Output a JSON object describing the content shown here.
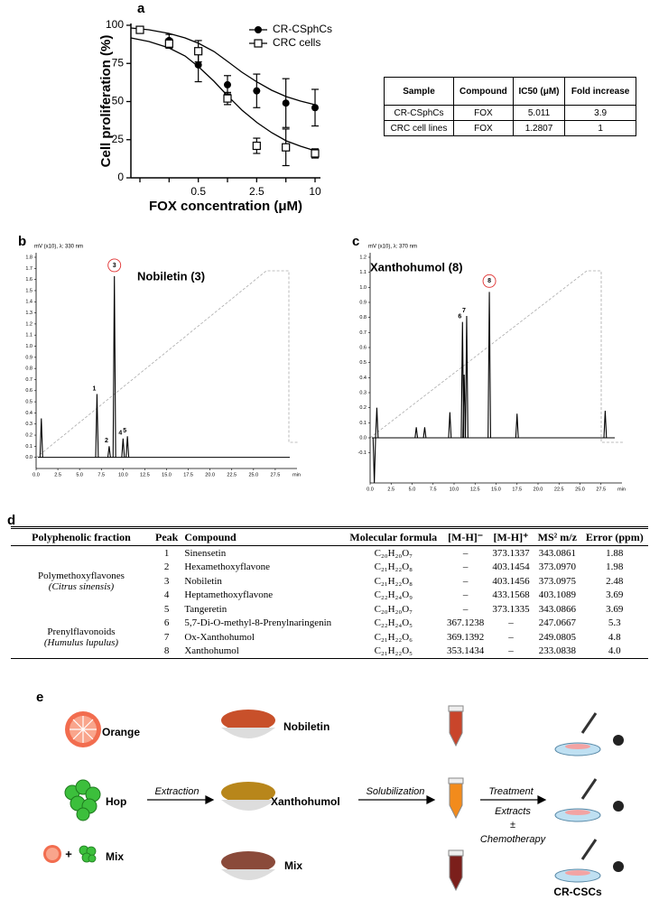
{
  "panel_labels": [
    "a",
    "b",
    "c",
    "d",
    "e"
  ],
  "chart_data": [
    {
      "type": "scatter",
      "xlabel": "FOX concentration (μM)",
      "ylabel": "Cell proliferation (%)",
      "categories": [
        null,
        null,
        "0.5",
        null,
        "2.5",
        null,
        "10"
      ],
      "series": [
        {
          "name": "CR-CSphCs",
          "color": "#000000",
          "marker": "circle",
          "values": [
            97,
            90,
            74,
            61,
            57,
            49,
            46
          ],
          "errors": [
            0,
            4,
            11,
            6,
            11,
            16,
            12
          ]
        },
        {
          "name": "CRC cells",
          "color": "#000000",
          "marker": "square",
          "values": [
            97,
            88,
            83,
            52,
            21,
            20,
            16
          ],
          "errors": [
            0,
            3,
            7,
            4,
            5,
            12,
            3
          ]
        }
      ],
      "ylim": [
        0,
        100
      ],
      "yticks": [
        0,
        25,
        50,
        75,
        100
      ]
    },
    {
      "type": "chromatogram",
      "title": "Nobiletin (3)",
      "ylabel": "mV (x10), λ: 330 nm",
      "xlabel": "min",
      "x": [
        0.6,
        7.0,
        8.4,
        9.0,
        10.0,
        10.5
      ],
      "values": [
        0.35,
        0.57,
        0.1,
        1.63,
        0.17,
        0.19
      ],
      "peak_labels": [
        null,
        "1",
        "2",
        "3",
        "4",
        "5"
      ],
      "circled": 3,
      "xlim": [
        0,
        30
      ],
      "ylim": [
        -0.1,
        1.8
      ],
      "xticks": [
        {
          "value": 0,
          "label": "0.0"
        },
        2.5,
        {
          "value": 5,
          "label": "5.0"
        },
        7.5,
        {
          "value": 10,
          "label": "10.0"
        },
        12.5,
        {
          "value": 15,
          "label": "15.0"
        },
        17.5,
        {
          "value": 20,
          "label": "20.0"
        },
        22.5,
        {
          "value": 25,
          "label": "25.0"
        },
        27.5
      ],
      "yticks": [
        {
          "value": 0,
          "label": "0.0"
        },
        0.1,
        0.2,
        0.3,
        0.4,
        0.5,
        0.6,
        0.7,
        0.8,
        0.9,
        {
          "value": 1,
          "label": "1.0"
        },
        1.1,
        1.2,
        1.3,
        1.4,
        1.5,
        1.6,
        1.7,
        1.8
      ]
    },
    {
      "type": "chromatogram",
      "title": "Xanthohumol (8)",
      "ylabel": "mV (x10), λ: 370 nm",
      "xlabel": "min",
      "x": [
        0.5,
        0.8,
        5.5,
        6.5,
        9.5,
        11.0,
        11.2,
        11.5,
        14.2,
        17.5,
        28.0
      ],
      "values": [
        -0.3,
        0.2,
        0.07,
        0.07,
        0.17,
        0.77,
        0.42,
        0.81,
        0.97,
        0.16,
        0.18
      ],
      "peak_labels": [
        null,
        null,
        null,
        null,
        null,
        "6",
        null,
        "7",
        "8",
        null,
        null
      ],
      "circled": 8,
      "xlim": [
        0,
        30
      ],
      "ylim": [
        -0.3,
        1.2
      ],
      "xticks": [
        {
          "value": 0,
          "label": "0.0"
        },
        2.5,
        {
          "value": 5,
          "label": "5.0"
        },
        7.5,
        {
          "value": 10,
          "label": "10.0"
        },
        12.5,
        {
          "value": 15,
          "label": "15.0"
        },
        17.5,
        {
          "value": 20,
          "label": "20.0"
        },
        22.5,
        {
          "value": 25,
          "label": "25.0"
        },
        27.5
      ],
      "yticks": [
        -0.1,
        {
          "value": 0,
          "label": "0.0"
        },
        0.1,
        0.2,
        0.3,
        0.4,
        0.5,
        0.6,
        0.7,
        0.8,
        0.9,
        {
          "value": 1,
          "label": "1.0"
        },
        1.1,
        1.2
      ]
    }
  ],
  "table_a": {
    "header": [
      "Sample",
      "Compound",
      "IC50 (μM)",
      "Fold increase"
    ],
    "rows": [
      [
        "CR-CSphCs",
        "FOX",
        "5.011",
        "3.9"
      ],
      [
        "CRC cell lines",
        "FOX",
        "1.2807",
        "1"
      ]
    ]
  },
  "table_d": {
    "header": [
      "Polyphenolic fraction",
      "Peak",
      "Compound",
      "Molecular formula",
      "[M-H]⁻",
      "[M-H]⁺",
      "MS² m/z",
      "Error (ppm)"
    ],
    "groups": [
      {
        "name": "Polymethoxyflavones",
        "species": "(Citrus sinensis)",
        "rows": 5
      },
      {
        "name": "Prenylflavonoids",
        "species": "(Humulus lupulus)",
        "rows": 3
      }
    ],
    "rows": [
      [
        "1",
        "Sinensetin",
        "C₂₀H₂₀O₇",
        "–",
        "373.1337",
        "343.0861",
        "1.88"
      ],
      [
        "2",
        "Hexamethoxyflavone",
        "C₂₁H₂₂O₈",
        "–",
        "403.1454",
        "373.0970",
        "1.98"
      ],
      [
        "3",
        "Nobiletin",
        "C₂₁H₂₂O₈",
        "–",
        "403.1456",
        "373.0975",
        "2.48"
      ],
      [
        "4",
        "Heptamethoxyflavone",
        "C₂₂H₂₄O₉",
        "–",
        "433.1568",
        "403.1089",
        "3.69"
      ],
      [
        "5",
        "Tangeretin",
        "C₂₀H₂₀O₇",
        "–",
        "373.1335",
        "343.0866",
        "3.69"
      ],
      [
        "6",
        "5,7-Di-O-methyl-8-Prenylnaringenin",
        "C₂₂H₂₄O₅",
        "367.1238",
        "–",
        "247.0667",
        "5.3"
      ],
      [
        "7",
        "Ox-Xanthohumol",
        "C₂₁H₂₂O₆",
        "369.1392",
        "–",
        "249.0805",
        "4.8"
      ],
      [
        "8",
        "Xanthohumol",
        "C₂₁H₂₂O₅",
        "353.1434",
        "–",
        "233.0838",
        "4.0"
      ]
    ]
  },
  "workflow": {
    "sources": [
      "Orange",
      "Hop",
      "Mix"
    ],
    "plus": "+",
    "steps": [
      "Extraction",
      "Solubilization",
      "Treatment"
    ],
    "extracts": [
      "Nobiletin",
      "Xanthohumol",
      "Mix"
    ],
    "treatment_note": [
      "Extracts",
      "±",
      "Chemotherapy"
    ],
    "target": "CR-CSCs"
  }
}
